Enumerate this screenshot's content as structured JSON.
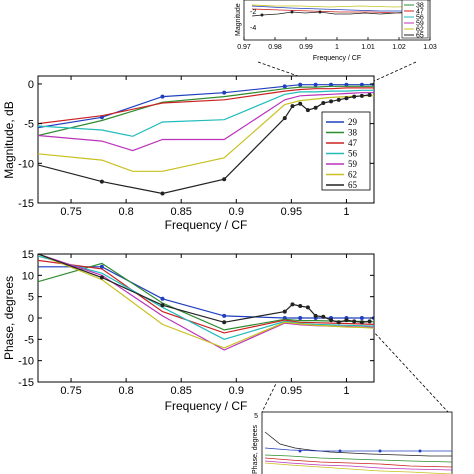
{
  "chart_data": [
    {
      "type": "line",
      "panel": "magnitude",
      "xlabel": "Frequency / CF",
      "ylabel": "Magnitude, dB",
      "xlim": [
        0.72,
        1.025
      ],
      "ylim": [
        -15,
        1
      ],
      "xticks": [
        "0.75",
        "0.8",
        "0.85",
        "0.9",
        "0.95",
        "1"
      ],
      "yticks": [
        "0",
        "-5",
        "-10",
        "-15"
      ],
      "legend_position": "right",
      "legend": [
        "29",
        "38",
        "47",
        "56",
        "59",
        "62",
        "65"
      ],
      "series": [
        {
          "name": "29",
          "color": "#1f3fbf",
          "x": [
            0.72,
            0.778,
            0.833,
            0.889,
            0.944,
            0.958,
            0.972,
            0.986,
            1.0,
            1.014,
            1.025
          ],
          "y": [
            -5.5,
            -4.2,
            -1.6,
            -1.1,
            -0.3,
            -0.1,
            -0.1,
            -0.1,
            -0.1,
            -0.1,
            -0.1
          ]
        },
        {
          "name": "38",
          "color": "#2e8b2e",
          "x": [
            0.72,
            0.778,
            0.833,
            0.889,
            0.944,
            0.958,
            0.972,
            0.986,
            1.0,
            1.014,
            1.025
          ],
          "y": [
            -6.5,
            -4.6,
            -2.3,
            -1.6,
            -0.6,
            -0.4,
            -0.4,
            -0.3,
            -0.3,
            -0.3,
            -0.3
          ]
        },
        {
          "name": "47",
          "color": "#cc2222",
          "x": [
            0.72,
            0.778,
            0.833,
            0.889,
            0.944,
            0.958,
            0.972,
            0.986,
            1.0,
            1.014,
            1.025
          ],
          "y": [
            -5.0,
            -4.0,
            -2.4,
            -2.0,
            -0.9,
            -0.7,
            -0.6,
            -0.6,
            -0.5,
            -0.5,
            -0.5
          ]
        },
        {
          "name": "56",
          "color": "#22bbbb",
          "x": [
            0.72,
            0.778,
            0.806,
            0.833,
            0.889,
            0.944,
            0.958,
            0.972,
            0.986,
            1.0,
            1.014,
            1.025
          ],
          "y": [
            -5.3,
            -5.8,
            -6.6,
            -4.8,
            -4.5,
            -1.3,
            -1.0,
            -1.0,
            -0.9,
            -0.9,
            -0.8,
            -0.8
          ]
        },
        {
          "name": "59",
          "color": "#bb33bb",
          "x": [
            0.72,
            0.778,
            0.806,
            0.833,
            0.889,
            0.944,
            0.958,
            0.972,
            0.986,
            1.0,
            1.014,
            1.025
          ],
          "y": [
            -6.5,
            -7.2,
            -8.4,
            -7.0,
            -7.0,
            -2.0,
            -1.5,
            -1.4,
            -1.3,
            -1.2,
            -1.1,
            -1.1
          ]
        },
        {
          "name": "62",
          "color": "#c8c020",
          "x": [
            0.72,
            0.778,
            0.806,
            0.833,
            0.889,
            0.944,
            0.958,
            0.972,
            0.986,
            1.0,
            1.014,
            1.025
          ],
          "y": [
            -8.8,
            -9.6,
            -11.0,
            -11.0,
            -9.3,
            -2.6,
            -2.1,
            -1.9,
            -1.7,
            -1.6,
            -1.5,
            -1.5
          ]
        },
        {
          "name": "65",
          "color": "#222222",
          "x": [
            0.72,
            0.778,
            0.833,
            0.889,
            0.944,
            0.951,
            0.958,
            0.965,
            0.972,
            0.979,
            0.986,
            0.993,
            1.0,
            1.007,
            1.014,
            1.021
          ],
          "y": [
            -10.2,
            -12.3,
            -13.8,
            -12.0,
            -4.3,
            -2.8,
            -2.5,
            -3.3,
            -3.0,
            -2.4,
            -2.2,
            -2.0,
            -1.8,
            -1.6,
            -1.5,
            -1.4
          ]
        }
      ]
    },
    {
      "type": "line",
      "panel": "phase",
      "xlabel": "Frequency / CF",
      "ylabel": "Phase, degrees",
      "xlim": [
        0.72,
        1.025
      ],
      "ylim": [
        -15,
        15
      ],
      "xticks": [
        "0.75",
        "0.8",
        "0.85",
        "0.9",
        "0.95",
        "1"
      ],
      "yticks": [
        "15",
        "10",
        "5",
        "0",
        "-5",
        "-10",
        "-15"
      ],
      "series": [
        {
          "name": "29",
          "color": "#1f3fbf",
          "x": [
            0.72,
            0.778,
            0.833,
            0.889,
            0.944,
            0.958,
            0.972,
            0.986,
            1.0,
            1.014,
            1.025
          ],
          "y": [
            12.0,
            12.0,
            4.5,
            0.5,
            0.0,
            0.0,
            0.0,
            0.0,
            0.0,
            0.0,
            0.0
          ]
        },
        {
          "name": "38",
          "color": "#2e8b2e",
          "x": [
            0.72,
            0.778,
            0.833,
            0.889,
            0.944,
            0.958,
            0.972,
            0.986,
            1.0,
            1.014,
            1.025
          ],
          "y": [
            8.5,
            12.8,
            3.5,
            -2.8,
            -0.3,
            -0.6,
            -0.6,
            -0.7,
            -0.8,
            -0.8,
            -0.9
          ]
        },
        {
          "name": "47",
          "color": "#cc2222",
          "x": [
            0.72,
            0.778,
            0.833,
            0.889,
            0.944,
            0.958,
            0.972,
            0.986,
            1.0,
            1.014,
            1.025
          ],
          "y": [
            13.5,
            11.5,
            1.5,
            -3.5,
            -0.5,
            -1.0,
            -1.1,
            -1.2,
            -1.3,
            -1.4,
            -1.5
          ]
        },
        {
          "name": "56",
          "color": "#22bbbb",
          "x": [
            0.72,
            0.778,
            0.833,
            0.889,
            0.944,
            0.958,
            0.972,
            0.986,
            1.0,
            1.014,
            1.025
          ],
          "y": [
            14.5,
            10.5,
            2.5,
            -5.0,
            -0.8,
            -1.3,
            -1.5,
            -1.6,
            -1.7,
            -1.8,
            -1.9
          ]
        },
        {
          "name": "59",
          "color": "#bb33bb",
          "x": [
            0.72,
            0.778,
            0.833,
            0.889,
            0.944,
            0.958,
            0.972,
            0.986,
            1.0,
            1.014,
            1.025
          ],
          "y": [
            15.0,
            10.0,
            0.5,
            -7.5,
            -1.2,
            -1.6,
            -1.8,
            -1.9,
            -2.0,
            -2.1,
            -2.2
          ]
        },
        {
          "name": "62",
          "color": "#c8c020",
          "x": [
            0.72,
            0.778,
            0.833,
            0.889,
            0.944,
            0.958,
            0.972,
            0.986,
            1.0,
            1.014,
            1.025
          ],
          "y": [
            15.0,
            9.0,
            -1.5,
            -7.0,
            -1.0,
            -1.4,
            -1.7,
            -1.9,
            -2.1,
            -2.2,
            -2.4
          ]
        },
        {
          "name": "65",
          "color": "#222222",
          "x": [
            0.72,
            0.778,
            0.833,
            0.889,
            0.944,
            0.951,
            0.958,
            0.965,
            0.972,
            0.979,
            0.986,
            0.993,
            1.0,
            1.007,
            1.014,
            1.021
          ],
          "y": [
            15.0,
            9.5,
            3.0,
            -1.0,
            1.5,
            3.2,
            2.8,
            2.5,
            0.5,
            0.3,
            -0.5,
            -1.0,
            -0.5,
            -0.8,
            -1.0,
            -0.8
          ]
        }
      ]
    },
    {
      "type": "line",
      "panel": "magnitude-inset",
      "xlabel": "Frequency / CF",
      "ylabel": "Magnitude",
      "xlim": [
        0.97,
        1.03
      ],
      "xticks": [
        "0.97",
        "0.98",
        "0.99",
        "1",
        "1.01",
        "1.02",
        "1.03"
      ],
      "yticks": [
        "-2",
        "-4"
      ],
      "legend": [
        "38",
        "47",
        "56",
        "59",
        "62",
        "65"
      ]
    },
    {
      "type": "line",
      "panel": "phase-inset",
      "ylabel": "Phase, degrees",
      "yticks": [
        "5"
      ]
    }
  ]
}
